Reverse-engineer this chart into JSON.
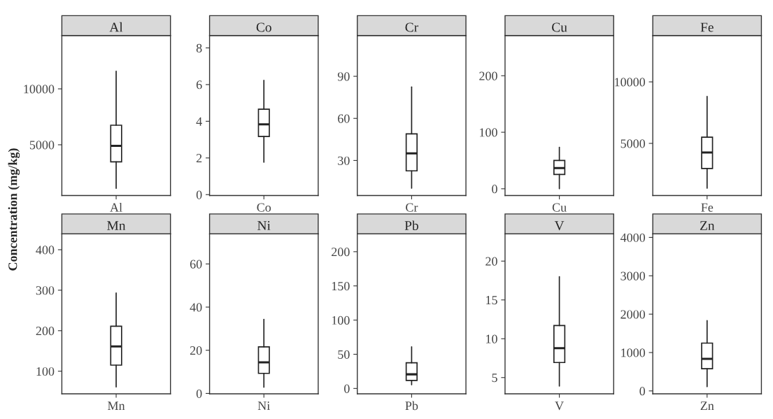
{
  "chart_data": [
    {
      "type": "box",
      "title": "Al",
      "ylabel": "Concentration (mg/kg)",
      "categories": [
        "Al"
      ],
      "ylim": [
        460,
        14760
      ],
      "yticks": [
        5000,
        10000
      ],
      "grid": false,
      "boxes": [
        {
          "low": 1100,
          "q1": 3470,
          "median": 4900,
          "q3": 6750,
          "high": 11580
        }
      ]
    },
    {
      "type": "box",
      "title": "Co",
      "categories": [
        "Co"
      ],
      "ylim": [
        -0.05,
        8.67
      ],
      "yticks": [
        0,
        2,
        4,
        6,
        8
      ],
      "grid": false,
      "boxes": [
        {
          "low": 1.77,
          "q1": 3.17,
          "median": 3.83,
          "q3": 4.66,
          "high": 6.23
        }
      ]
    },
    {
      "type": "box",
      "title": "Cr",
      "categories": [
        "Cr"
      ],
      "ylim": [
        5,
        119
      ],
      "yticks": [
        30,
        60,
        90
      ],
      "grid": false,
      "boxes": [
        {
          "low": 10.3,
          "q1": 22.6,
          "median": 35.1,
          "q3": 49.0,
          "high": 82.4
        }
      ]
    },
    {
      "type": "box",
      "title": "Cu",
      "categories": [
        "Cu"
      ],
      "ylim": [
        -12,
        271
      ],
      "yticks": [
        0,
        100,
        200
      ],
      "grid": false,
      "boxes": [
        {
          "low": 0,
          "q1": 25.3,
          "median": 36.7,
          "q3": 50.2,
          "high": 73.4
        }
      ]
    },
    {
      "type": "box",
      "title": "Fe",
      "categories": [
        "Fe"
      ],
      "ylim": [
        760,
        13760
      ],
      "yticks": [
        5000,
        10000
      ],
      "grid": false,
      "boxes": [
        {
          "low": 1360,
          "q1": 2960,
          "median": 4260,
          "q3": 5500,
          "high": 8820
        }
      ]
    },
    {
      "type": "box",
      "title": "Mn",
      "categories": [
        "Mn"
      ],
      "ylim": [
        44,
        439
      ],
      "yticks": [
        100,
        200,
        300,
        400
      ],
      "grid": false,
      "boxes": [
        {
          "low": 61,
          "q1": 115,
          "median": 161,
          "q3": 211,
          "high": 293
        }
      ]
    },
    {
      "type": "box",
      "title": "Ni",
      "categories": [
        "Ni"
      ],
      "ylim": [
        -0.2,
        73.9
      ],
      "yticks": [
        0,
        20,
        40,
        60
      ],
      "grid": false,
      "boxes": [
        {
          "low": 2.9,
          "q1": 9.3,
          "median": 14.4,
          "q3": 21.6,
          "high": 34.3
        }
      ]
    },
    {
      "type": "box",
      "title": "Pb",
      "categories": [
        "Pb"
      ],
      "ylim": [
        -7.9,
        226
      ],
      "yticks": [
        0,
        50,
        100,
        150,
        200
      ],
      "grid": false,
      "boxes": [
        {
          "low": 5.4,
          "q1": 11.8,
          "median": 20.7,
          "q3": 37.5,
          "high": 61
        }
      ]
    },
    {
      "type": "box",
      "title": "V",
      "categories": [
        "V"
      ],
      "ylim": [
        2.9,
        23.5
      ],
      "yticks": [
        5,
        10,
        15,
        20
      ],
      "grid": false,
      "boxes": [
        {
          "low": 3.9,
          "q1": 6.94,
          "median": 8.79,
          "q3": 11.7,
          "high": 18.0
        }
      ]
    },
    {
      "type": "box",
      "title": "Zn",
      "categories": [
        "Zn"
      ],
      "ylim": [
        -77,
        4091
      ],
      "yticks": [
        0,
        1000,
        2000,
        3000,
        4000
      ],
      "grid": false,
      "boxes": [
        {
          "low": 109,
          "q1": 578,
          "median": 835,
          "q3": 1246,
          "high": 1830
        }
      ]
    }
  ]
}
